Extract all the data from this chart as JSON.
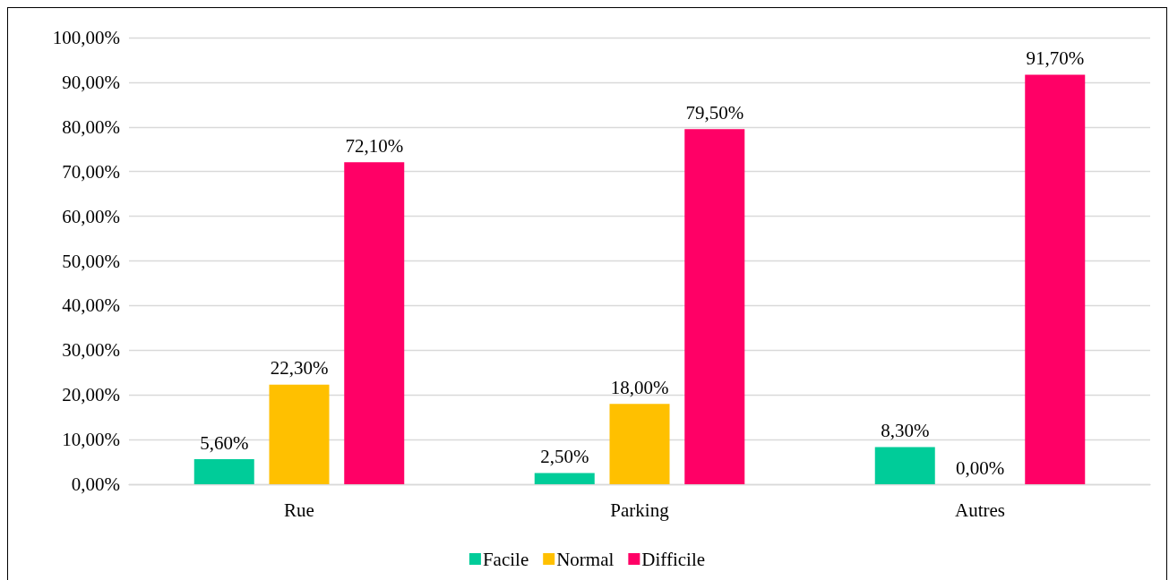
{
  "chart_data": {
    "type": "bar",
    "categories": [
      "Rue",
      "Parking",
      "Autres"
    ],
    "series": [
      {
        "name": "Facile",
        "color": "#00cc99",
        "values": [
          5.6,
          2.5,
          8.3
        ],
        "value_labels": [
          "5,60%",
          "2,50%",
          "8,30%"
        ]
      },
      {
        "name": "Normal",
        "color": "#ffc000",
        "values": [
          22.3,
          18.0,
          0.0
        ],
        "value_labels": [
          "22,30%",
          "18,00%",
          "0,00%"
        ]
      },
      {
        "name": "Difficile",
        "color": "#ff0066",
        "values": [
          72.1,
          79.5,
          91.7
        ],
        "value_labels": [
          "72,10%",
          "79,50%",
          "91,70%"
        ]
      }
    ],
    "ylim": [
      0,
      100
    ],
    "yticks": [
      {
        "value": 0,
        "label": "0,00%"
      },
      {
        "value": 10,
        "label": "10,00%"
      },
      {
        "value": 20,
        "label": "20,00%"
      },
      {
        "value": 30,
        "label": "30,00%"
      },
      {
        "value": 40,
        "label": "40,00%"
      },
      {
        "value": 50,
        "label": "50,00%"
      },
      {
        "value": 60,
        "label": "60,00%"
      },
      {
        "value": 70,
        "label": "70,00%"
      },
      {
        "value": 80,
        "label": "80,00%"
      },
      {
        "value": 90,
        "label": "90,00%"
      },
      {
        "value": 100,
        "label": "100,00%"
      }
    ],
    "grid": "y",
    "legend": "bottom"
  }
}
